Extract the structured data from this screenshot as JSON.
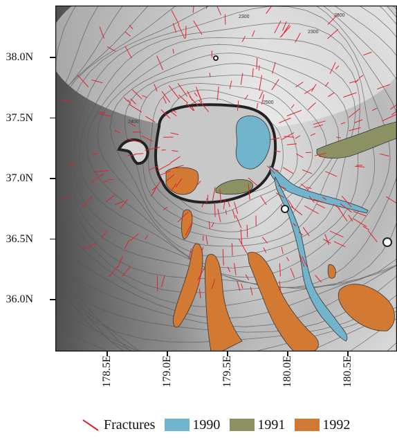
{
  "map": {
    "y_ticks": [
      {
        "label": "38.0N",
        "value": 38.0
      },
      {
        "label": "37.5N",
        "value": 37.5
      },
      {
        "label": "37.0N",
        "value": 37.0
      },
      {
        "label": "36.5N",
        "value": 36.5
      },
      {
        "label": "36.0N",
        "value": 36.0
      }
    ],
    "x_ticks": [
      {
        "label": "178.5E",
        "value": 178.5
      },
      {
        "label": "179.0E",
        "value": 179.0
      },
      {
        "label": "179.5E",
        "value": 179.5
      },
      {
        "label": "180.0E",
        "value": 180.0
      },
      {
        "label": "180.5E",
        "value": 180.5
      }
    ],
    "contour_labels": [
      "2300",
      "2300",
      "2400",
      "2500",
      "2300"
    ],
    "legend": {
      "fractures": "Fractures",
      "flow_1990": "1990",
      "flow_1991": "1991",
      "flow_1992": "1992"
    },
    "colors": {
      "fracture": "#e0202a",
      "flow_1990": "#72b4cc",
      "flow_1991": "#8c9164",
      "flow_1992": "#d27a33",
      "contour": "#555555"
    }
  }
}
